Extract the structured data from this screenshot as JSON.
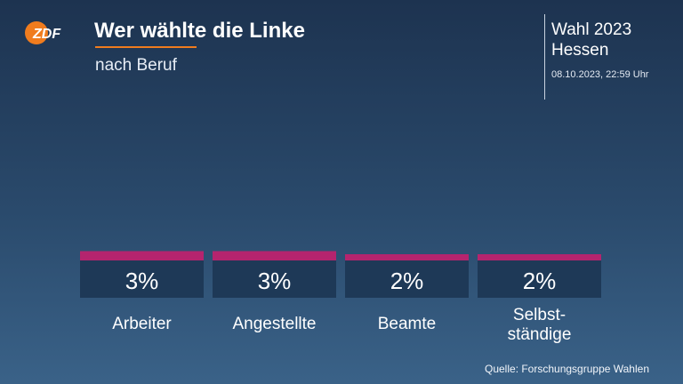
{
  "header": {
    "logo_text": "ZDF",
    "title": "Wer wählte die Linke",
    "subtitle": "nach Beruf",
    "election": "Wahl 2023",
    "region": "Hessen",
    "timestamp": "08.10.2023, 22:59 Uhr"
  },
  "colors": {
    "accent": "#f07c1e",
    "bar": "#b5246e",
    "value_box": "#1e3957",
    "logo": "#f07c1e"
  },
  "chart_data": {
    "type": "bar",
    "title": "Wer wählte die Linke",
    "subtitle": "nach Beruf",
    "categories": [
      "Arbeiter",
      "Angestellte",
      "Beamte",
      "Selbst-\nständige"
    ],
    "values": [
      3,
      3,
      2,
      2
    ],
    "value_labels": [
      "3%",
      "3%",
      "2%",
      "2%"
    ],
    "unit": "%",
    "ylim": [
      0,
      100
    ]
  },
  "footer": {
    "source": "Quelle: Forschungsgruppe Wahlen"
  }
}
